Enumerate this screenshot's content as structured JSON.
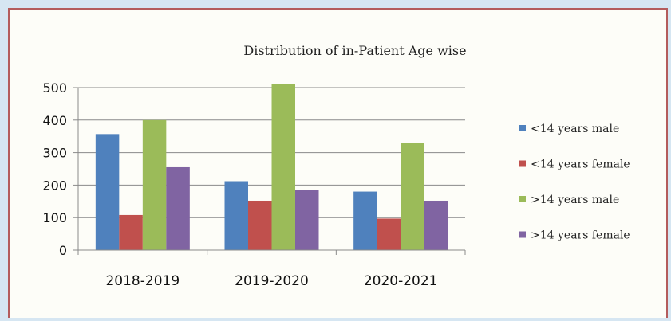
{
  "chart_data": {
    "type": "bar",
    "title": "Distribution of in-Patient Age wise",
    "xlabel": "",
    "ylabel": "",
    "categories": [
      "2018-2019",
      "2019-2020",
      "2020-2021"
    ],
    "ylim": [
      0,
      500
    ],
    "yticks": [
      "0",
      "100",
      "200",
      "300",
      "400",
      "500"
    ],
    "grid": true,
    "legend_position": "right",
    "series": [
      {
        "name": "<14 years male",
        "color": "#4f81bd",
        "values": [
          357,
          212,
          180
        ]
      },
      {
        "name": "<14 years female",
        "color": "#c0504d",
        "values": [
          108,
          152,
          97
        ]
      },
      {
        "name": ">14 years male",
        "color": "#9bbb59",
        "values": [
          400,
          512,
          330
        ]
      },
      {
        "name": ">14 years female",
        "color": "#8064a2",
        "values": [
          255,
          185,
          152
        ]
      }
    ]
  }
}
